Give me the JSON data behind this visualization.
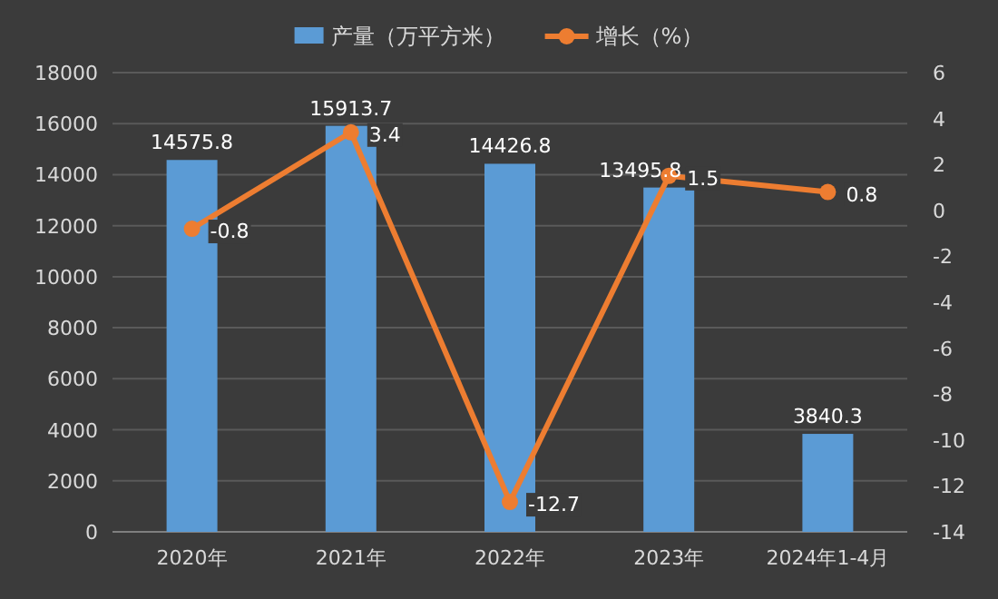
{
  "chart_data": {
    "type": "bar",
    "categories": [
      "2020年",
      "2021年",
      "2022年",
      "2023年",
      "2024年1-4月"
    ],
    "series": [
      {
        "name": "产量（万平方米）",
        "color": "#5b9bd5",
        "values": [
          14575.8,
          15913.7,
          14426.8,
          13495.8,
          3840.3
        ]
      },
      {
        "name": "增长（%）",
        "type": "line",
        "axis": "y2",
        "color": "#ed7d31",
        "values": [
          -0.8,
          3.4,
          -12.7,
          1.5,
          0.8
        ]
      }
    ],
    "ylim": [
      0,
      18000
    ],
    "yticks": [
      0,
      2000,
      4000,
      6000,
      8000,
      10000,
      12000,
      14000,
      16000,
      18000
    ],
    "y2lim": [
      -14,
      6
    ],
    "y2ticks": [
      -14,
      -12,
      -10,
      -8,
      -6,
      -4,
      -2,
      0,
      2,
      4,
      6
    ],
    "data_labels": true,
    "grid": "y",
    "legend": "top",
    "marker": "circle",
    "line_style": "solid"
  }
}
